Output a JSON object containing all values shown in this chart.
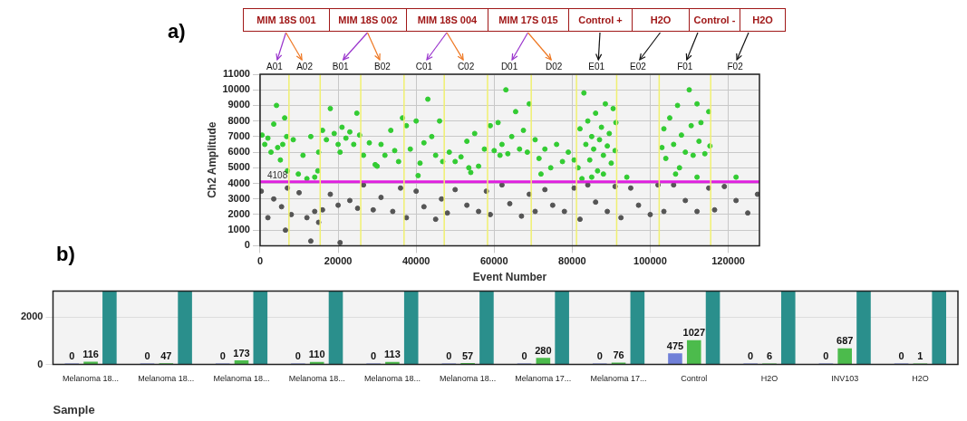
{
  "chart_data": [
    {
      "type": "scatter",
      "xlabel": "Event Number",
      "ylabel": "Ch2 Amplitude",
      "xlim": [
        0,
        128000
      ],
      "xticks": [
        0,
        20000,
        40000,
        60000,
        80000,
        100000,
        120000
      ],
      "ylim": [
        0,
        11000
      ],
      "yticks": [
        0,
        1000,
        2000,
        3000,
        4000,
        5000,
        6000,
        7000,
        8000,
        9000,
        10000,
        11000
      ],
      "grid": true,
      "legend": false,
      "marker": "circle",
      "annotations": [
        "a)",
        "MIM 18S 001",
        "MIM 18S 002",
        "MIM 18S 004",
        "MIM 17S 015",
        "Control +",
        "H2O",
        "Control -",
        "H2O",
        "A01",
        "A02",
        "B01",
        "B02",
        "C01",
        "C02",
        "D01",
        "D02",
        "E01",
        "E02",
        "F01",
        "F02"
      ],
      "ref_lines": [
        {
          "axis": "y",
          "value": 4108,
          "label": "4108",
          "color": "#e020e0"
        },
        {
          "axis": "x",
          "value": 7400,
          "color": "#f0f070"
        },
        {
          "axis": "x",
          "value": 15400,
          "color": "#f0f070"
        },
        {
          "axis": "x",
          "value": 25800,
          "color": "#f0f070"
        },
        {
          "axis": "x",
          "value": 36900,
          "color": "#f0f070"
        },
        {
          "axis": "x",
          "value": 47200,
          "color": "#f0f070"
        },
        {
          "axis": "x",
          "value": 58300,
          "color": "#f0f070"
        },
        {
          "axis": "x",
          "value": 69500,
          "color": "#f0f070"
        },
        {
          "axis": "x",
          "value": 81100,
          "color": "#f0f070"
        },
        {
          "axis": "x",
          "value": 91400,
          "color": "#f0f070"
        },
        {
          "axis": "x",
          "value": 102300,
          "color": "#f0f070"
        },
        {
          "axis": "x",
          "value": 115500,
          "color": "#f0f070"
        }
      ],
      "series": [
        {
          "color": "#555555",
          "x": [
            300,
            2000,
            3500,
            5500,
            6500,
            7000,
            8000,
            10000,
            12000,
            14000,
            15000,
            13000,
            16000,
            18000,
            20000,
            20500,
            23000,
            25000,
            26500,
            29000,
            31000,
            34000,
            36000,
            37500,
            40000,
            42000,
            45000,
            46500,
            48000,
            50000,
            53000,
            56000,
            58000,
            59000,
            62000,
            64000,
            67000,
            69000,
            70500,
            73000,
            75000,
            78000,
            80500,
            82000,
            84000,
            86000,
            89000,
            91000,
            92500,
            95000,
            97000,
            100000,
            102000,
            103500,
            106000,
            109000,
            112000,
            115000,
            116500,
            119000,
            122000,
            125000,
            127500
          ],
          "values": [
            3500,
            1800,
            3000,
            2500,
            1000,
            3700,
            2000,
            3400,
            1800,
            2200,
            1500,
            300,
            2300,
            3300,
            2600,
            200,
            2900,
            2400,
            3900,
            2300,
            3100,
            2200,
            3700,
            1800,
            3500,
            2500,
            1700,
            3000,
            2100,
            3600,
            2600,
            2200,
            3500,
            2000,
            3900,
            2700,
            1900,
            3300,
            2200,
            3600,
            2600,
            2200,
            3700,
            1700,
            3900,
            2800,
            2200,
            3800,
            1800,
            3700,
            2600,
            2000,
            3900,
            2200,
            3900,
            2900,
            2200,
            3700,
            2300,
            3800,
            2900,
            2100,
            3300
          ]
        },
        {
          "color": "#33cc33",
          "x": [
            500,
            1200,
            2000,
            2800,
            3500,
            4200,
            4500,
            5200,
            5800,
            6300,
            6800,
            7000,
            8500,
            9800,
            11000,
            12000,
            13000,
            14000,
            14800,
            15000,
            16000,
            17000,
            18000,
            19000,
            20000,
            21000,
            22000,
            23000,
            24000,
            24800,
            25500,
            20500,
            26500,
            28000,
            29500,
            31000,
            32000,
            33500,
            34500,
            35500,
            36500,
            30000,
            37500,
            38500,
            40000,
            41000,
            42000,
            43000,
            44000,
            45000,
            46000,
            46800,
            40500,
            48500,
            50000,
            51500,
            53000,
            54000,
            55000,
            56000,
            57500,
            53500,
            59000,
            60000,
            61000,
            62000,
            63000,
            63500,
            64500,
            65500,
            66500,
            67500,
            68500,
            69000,
            61500,
            70500,
            71500,
            73000,
            74500,
            76000,
            77500,
            79000,
            80500,
            72000,
            81500,
            82000,
            82500,
            83000,
            83500,
            84000,
            84500,
            85000,
            85500,
            86000,
            86500,
            87000,
            87500,
            88000,
            88500,
            89000,
            89500,
            90000,
            90500,
            91000,
            91200,
            85000,
            88000,
            94000,
            103000,
            103500,
            104000,
            105000,
            106000,
            107000,
            107500,
            108000,
            109000,
            110000,
            110500,
            111000,
            112000,
            112500,
            113000,
            114000,
            115000,
            115300,
            106500,
            112000,
            122000
          ],
          "values": [
            7100,
            6500,
            6900,
            6000,
            7800,
            9000,
            6300,
            5500,
            6500,
            8200,
            7000,
            4800,
            6800,
            4600,
            5800,
            4300,
            7000,
            4400,
            4800,
            6000,
            7400,
            6800,
            8800,
            7200,
            6500,
            7600,
            6900,
            7300,
            6500,
            8500,
            7100,
            6000,
            5800,
            6600,
            5200,
            6500,
            5800,
            7400,
            6100,
            5400,
            8200,
            5100,
            7700,
            6200,
            8000,
            5300,
            6600,
            9400,
            7000,
            5800,
            8000,
            5400,
            4500,
            6000,
            5400,
            5700,
            6700,
            4700,
            7200,
            5100,
            6200,
            5000,
            7700,
            6100,
            7900,
            6500,
            10000,
            5900,
            7000,
            8600,
            6200,
            7400,
            6000,
            9100,
            5800,
            6800,
            5600,
            6200,
            5000,
            6500,
            5400,
            6000,
            5500,
            4600,
            5000,
            7500,
            4300,
            9800,
            6500,
            8000,
            5500,
            7000,
            6200,
            8500,
            4800,
            6800,
            7600,
            5800,
            9100,
            6400,
            7200,
            5300,
            8800,
            6100,
            7900,
            4400,
            4600,
            4400,
            6300,
            7500,
            5600,
            8200,
            6500,
            9000,
            5000,
            7100,
            6000,
            10000,
            7700,
            5800,
            9100,
            6700,
            7900,
            5900,
            8600,
            6400,
            4600,
            4400,
            4400
          ]
        }
      ]
    },
    {
      "type": "bar",
      "xlabel": "Sample",
      "categories": [
        "Melanoma 18...",
        "Melanoma 18...",
        "Melanoma 18...",
        "Melanoma 18...",
        "Melanoma 18...",
        "Melanoma 18...",
        "Melanoma 17...",
        "Melanoma 17...",
        "Control",
        "H2O",
        "INV103",
        "H2O"
      ],
      "ylim": [
        0,
        3100
      ],
      "yticks": [
        0,
        2000
      ],
      "grid": "y",
      "legend": false,
      "annotations": [
        "b)"
      ],
      "series": [
        {
          "color": "#7080d8",
          "values": [
            0,
            0,
            0,
            0,
            0,
            0,
            0,
            0,
            475,
            0,
            0,
            0
          ],
          "value_labels": [
            "0",
            "0",
            "0",
            "0",
            "0",
            "0",
            "0",
            "0",
            "475",
            "0",
            "0",
            "0"
          ]
        },
        {
          "color": "#4cbb4c",
          "values": [
            116,
            47,
            173,
            110,
            113,
            57,
            280,
            76,
            1027,
            6,
            687,
            1
          ],
          "value_labels": [
            "116",
            "47",
            "173",
            "110",
            "113",
            "57",
            "280",
            "76",
            "1027",
            "6",
            "687",
            "1"
          ]
        },
        {
          "color": "#2a8f8c",
          "values": [
            3100,
            3100,
            3100,
            3100,
            3100,
            3100,
            3100,
            3100,
            3100,
            3100,
            3100,
            3100
          ]
        }
      ]
    }
  ]
}
